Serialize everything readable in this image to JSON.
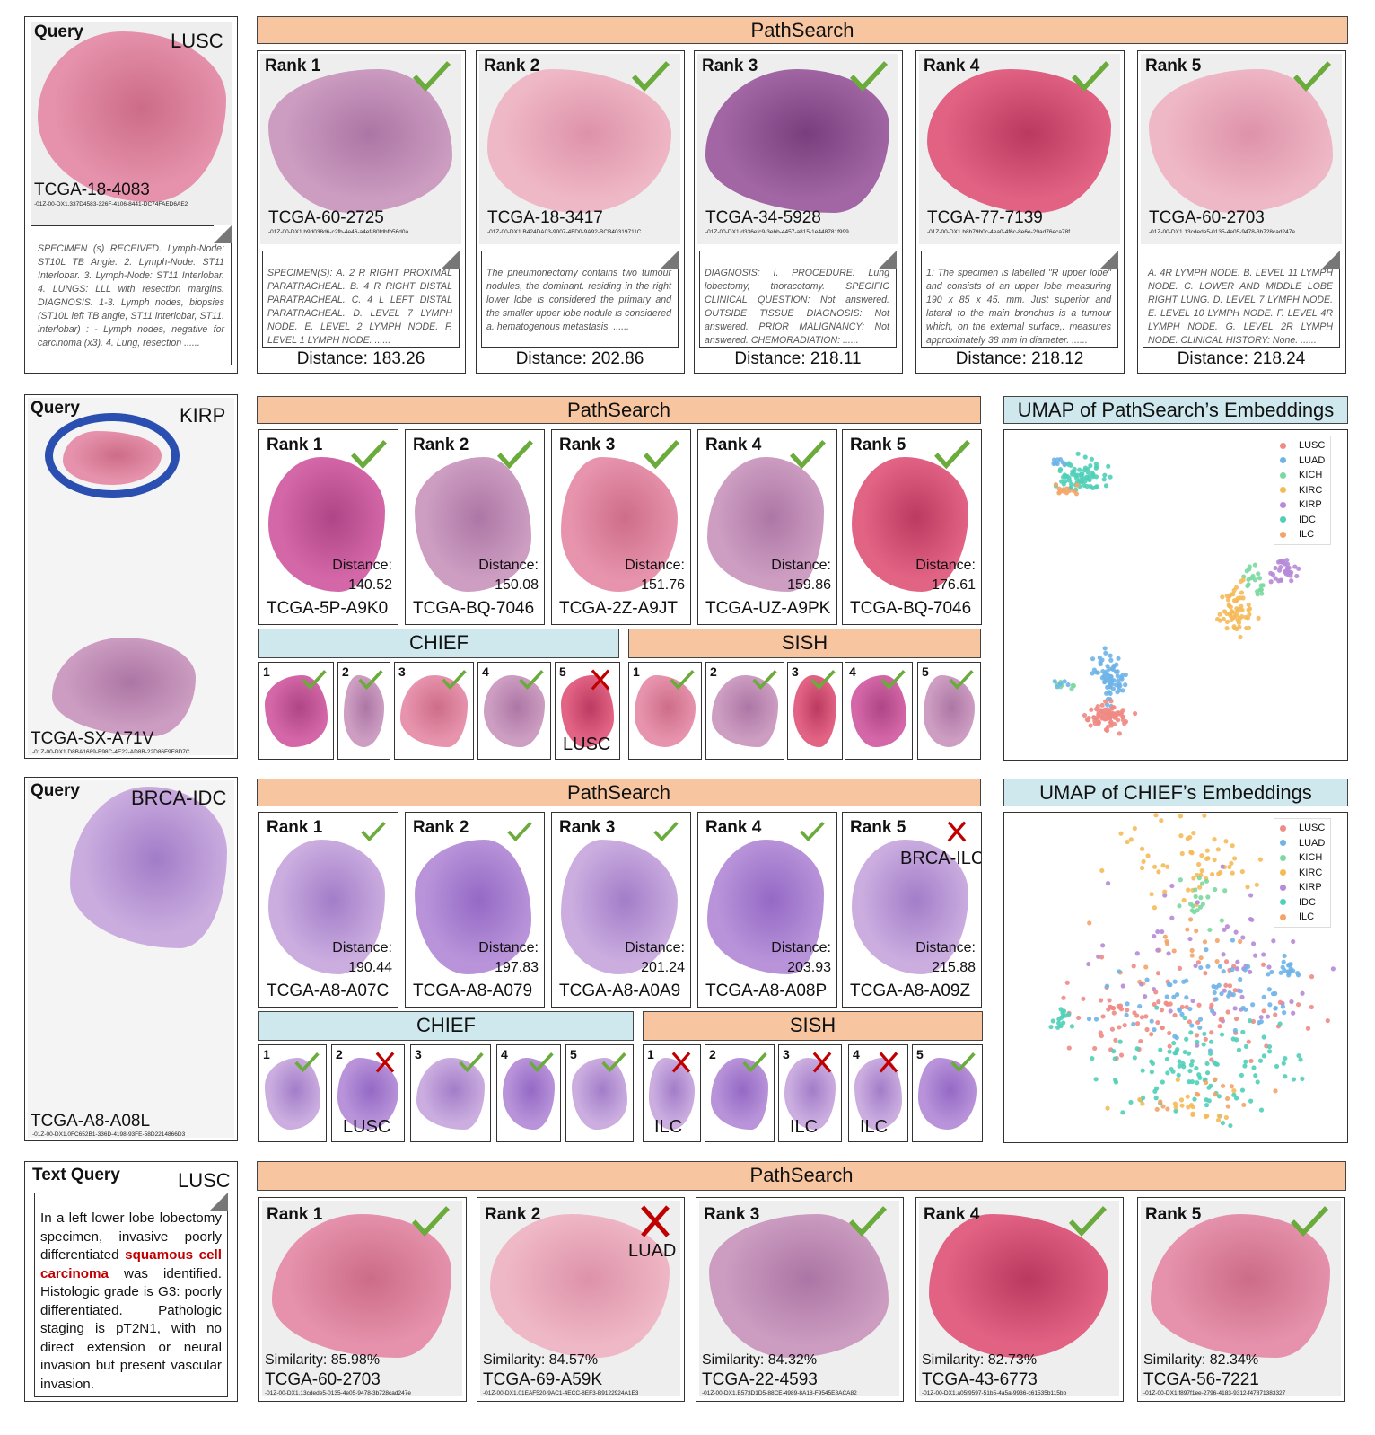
{
  "colors": {
    "check": "#6aab3c",
    "cross": "#c00000",
    "pathsearch_header": "#f7c6a0",
    "chief_header": "#cfe8ee",
    "sish_header": "#f7c6a0"
  },
  "legend": [
    {
      "label": "LUSC",
      "color": "#ef8a84"
    },
    {
      "label": "LUAD",
      "color": "#6eb4e8"
    },
    {
      "label": "KICH",
      "color": "#7ad8a0"
    },
    {
      "label": "KIRC",
      "color": "#f5ba58"
    },
    {
      "label": "KIRP",
      "color": "#b68ad8"
    },
    {
      "label": "IDC",
      "color": "#4fcfb8"
    },
    {
      "label": "ILC",
      "color": "#f4a468"
    }
  ],
  "rows": [
    {
      "query": {
        "label": "Query",
        "class": "LUSC",
        "id": "TCGA-18-4083",
        "suffix": "-01Z-00-DX1.337D4583-326F-4106-8441-DC74FAED6AE2",
        "report": "SPECIMEN (s) RECEIVED. Lymph-Node: ST10L TB Angle. 2. Lymph-Node: ST11 Interlobar. 3. Lymph-Node: ST11 Interlobar. 4. LUNGS: LLL with resection margins. DIAGNOSIS. 1-3. Lymph nodes, biopsies (ST10L left TB angle, ST11 interlobar, ST11. interlobar) : - Lymph nodes, negative for carcinoma (x3). 4. Lung, resection ......"
      },
      "header": "PathSearch",
      "results": [
        {
          "rank": "Rank 1",
          "correct": true,
          "id": "TCGA-60-2725",
          "suffix": "-01Z-00-DX1.b9d038d6-c2fb-4e46-a4ef-80fdbfb56d0a",
          "report": "SPECIMEN(S): A. 2 R RIGHT PROXIMAL PARATRACHEAL. B. 4 R RIGHT DISTAL PARATRACHEAL. C. 4 L LEFT DISTAL PARATRACHEAL. D. LEVEL 7 LYMPH NODE. E. LEVEL 2 LYMPH NODE. F. LEVEL 1 LYMPH NODE. ......",
          "distance": "Distance: 183.26"
        },
        {
          "rank": "Rank 2",
          "correct": true,
          "id": "TCGA-18-3417",
          "suffix": "-01Z-00-DX1.B424DA03-9007-4FD0-9A92-BCB40319711C",
          "report": "The pneumonectomy contains two tumour nodules, the dominant. residing in the right lower lobe is considered the primary and the smaller upper lobe nodule is considered a. hematogenous metastasis. ......",
          "distance": "Distance: 202.86"
        },
        {
          "rank": "Rank 3",
          "correct": true,
          "id": "TCGA-34-5928",
          "suffix": "-01Z-00-DX1.d336efc9-3ebb-4457-a815-1e448781f999",
          "report": "DIAGNOSIS: I. PROCEDURE: Lung lobectomy, thoracotomy. SPECIFIC CLINICAL QUESTION: Not answered. OUTSIDE TISSUE DIAGNOSIS: Not answered. PRIOR MALIGNANCY: Not answered. CHEMORADIATION: ......",
          "distance": "Distance: 218.11"
        },
        {
          "rank": "Rank 4",
          "correct": true,
          "id": "TCGA-77-7139",
          "suffix": "-01Z-00-DX1.b8b79b0c-4ea0-4f6c-8e6e-29ad76eca78f",
          "report": "1: The specimen is labelled \"R upper lobe\" and consists of an upper lobe measuring 190 x 85 x 45. mm. Just superior and lateral to the main bronchus is a tumour which, on the external surface,. measures approximately 38 mm in diameter. ......",
          "distance": "Distance: 218.12"
        },
        {
          "rank": "Rank 5",
          "correct": true,
          "id": "TCGA-60-2703",
          "suffix": "-01Z-00-DX1.13cdede5-0135-4e05-9478-3b728cad247e",
          "report": "A. 4R LYMPH NODE. B. LEVEL 11 LYMPH NODE. C. LOWER AND MIDDLE LOBE RIGHT LUNG. D. LEVEL 7 LYMPH NODE. E. LEVEL 10 LYMPH NODE. F. LEVEL 4R LYMPH NODE. G. LEVEL 2R LYMPH NODE. CLINICAL HISTORY: None. ......",
          "distance": "Distance: 218.24"
        }
      ]
    },
    {
      "query": {
        "label": "Query",
        "class": "KIRP",
        "id": "TCGA-SX-A71V",
        "suffix": "-01Z-00-DX1.D8BA1689-B98C-4E22-AD8B-22D86F9E8D7C"
      },
      "header": "PathSearch",
      "results": [
        {
          "rank": "Rank 1",
          "correct": true,
          "distance_label": "Distance:",
          "distance": "140.52",
          "id": "TCGA-5P-A9K0"
        },
        {
          "rank": "Rank 2",
          "correct": true,
          "distance_label": "Distance:",
          "distance": "150.08",
          "id": "TCGA-BQ-7046"
        },
        {
          "rank": "Rank 3",
          "correct": true,
          "distance_label": "Distance:",
          "distance": "151.76",
          "id": "TCGA-2Z-A9JT"
        },
        {
          "rank": "Rank 4",
          "correct": true,
          "distance_label": "Distance:",
          "distance": "159.86",
          "id": "TCGA-UZ-A9PK"
        },
        {
          "rank": "Rank 5",
          "correct": true,
          "distance_label": "Distance:",
          "distance": "176.61",
          "id": "TCGA-BQ-7046"
        }
      ],
      "chief": {
        "header": "CHIEF",
        "results": [
          {
            "n": "1",
            "correct": true
          },
          {
            "n": "2",
            "correct": true
          },
          {
            "n": "3",
            "correct": true
          },
          {
            "n": "4",
            "correct": true
          },
          {
            "n": "5",
            "correct": false,
            "label": "LUSC"
          }
        ]
      },
      "sish": {
        "header": "SISH",
        "results": [
          {
            "n": "1",
            "correct": true
          },
          {
            "n": "2",
            "correct": true
          },
          {
            "n": "3",
            "correct": true
          },
          {
            "n": "4",
            "correct": true
          },
          {
            "n": "5",
            "correct": true
          }
        ]
      },
      "umap": {
        "title": "UMAP of PathSearch’s Embeddings"
      }
    },
    {
      "query": {
        "label": "Query",
        "class": "BRCA-IDC",
        "id": "TCGA-A8-A08L",
        "suffix": "-01Z-00-DX1.0FC652B1-336D-4198-93FE-58D2214866D3"
      },
      "header": "PathSearch",
      "results": [
        {
          "rank": "Rank 1",
          "correct": true,
          "distance_label": "Distance:",
          "distance": "190.44",
          "id": "TCGA-A8-A07C"
        },
        {
          "rank": "Rank 2",
          "correct": true,
          "distance_label": "Distance:",
          "distance": "197.83",
          "id": "TCGA-A8-A079"
        },
        {
          "rank": "Rank 3",
          "correct": true,
          "distance_label": "Distance:",
          "distance": "201.24",
          "id": "TCGA-A8-A0A9"
        },
        {
          "rank": "Rank 4",
          "correct": true,
          "distance_label": "Distance:",
          "distance": "203.93",
          "id": "TCGA-A8-A08P"
        },
        {
          "rank": "Rank 5",
          "correct": false,
          "label": "BRCA-ILC",
          "distance_label": "Distance:",
          "distance": "215.88",
          "id": "TCGA-A8-A09Z"
        }
      ],
      "chief": {
        "header": "CHIEF",
        "results": [
          {
            "n": "1",
            "correct": true
          },
          {
            "n": "2",
            "correct": false,
            "label": "LUSC"
          },
          {
            "n": "3",
            "correct": true
          },
          {
            "n": "4",
            "correct": true
          },
          {
            "n": "5",
            "correct": true
          }
        ]
      },
      "sish": {
        "header": "SISH",
        "results": [
          {
            "n": "1",
            "correct": false,
            "label": "ILC"
          },
          {
            "n": "2",
            "correct": true
          },
          {
            "n": "3",
            "correct": false,
            "label": "ILC"
          },
          {
            "n": "4",
            "correct": false,
            "label": "ILC"
          },
          {
            "n": "5",
            "correct": true
          }
        ]
      },
      "umap": {
        "title": "UMAP of CHIEF’s Embeddings"
      }
    },
    {
      "query": {
        "label": "Text Query",
        "class": "LUSC",
        "text_before": "In a left lower lobe lobectomy specimen, invasive poorly differentiated ",
        "text_highlight": "squamous cell carcinoma",
        "text_after": " was identified. Histologic grade is G3: poorly differentiated. Pathologic staging is pT2N1, with no direct extension or neural invasion but present vascular invasion."
      },
      "header": "PathSearch",
      "results": [
        {
          "rank": "Rank 1",
          "correct": true,
          "similarity": "Similarity: 85.98%",
          "id": "TCGA-60-2703",
          "suffix": "-01Z-00-DX1.13cdede5-0135-4e05-9478-3b728cad247e"
        },
        {
          "rank": "Rank 2",
          "correct": false,
          "label": "LUAD",
          "similarity": "Similarity: 84.57%",
          "id": "TCGA-69-A59K",
          "suffix": "-01Z-00-DX1.01EAF520-9AC1-4ECC-8EF3-B9122924A1E3"
        },
        {
          "rank": "Rank 3",
          "correct": true,
          "similarity": "Similarity: 84.32%",
          "id": "TCGA-22-4593",
          "suffix": "-01Z-00-DX1.B573D1D5-88CE-4989-8A18-F9545E8ACA82"
        },
        {
          "rank": "Rank 4",
          "correct": true,
          "similarity": "Similarity: 82.73%",
          "id": "TCGA-43-6773",
          "suffix": "-01Z-00-DX1.a05f9597-51b5-4a5a-9936-c61535b115bb"
        },
        {
          "rank": "Rank 5",
          "correct": true,
          "similarity": "Similarity: 82.34%",
          "id": "TCGA-56-7221",
          "suffix": "-01Z-00-DX1.f897f1ee-2796-4183-9312-f47871383327"
        }
      ]
    }
  ]
}
